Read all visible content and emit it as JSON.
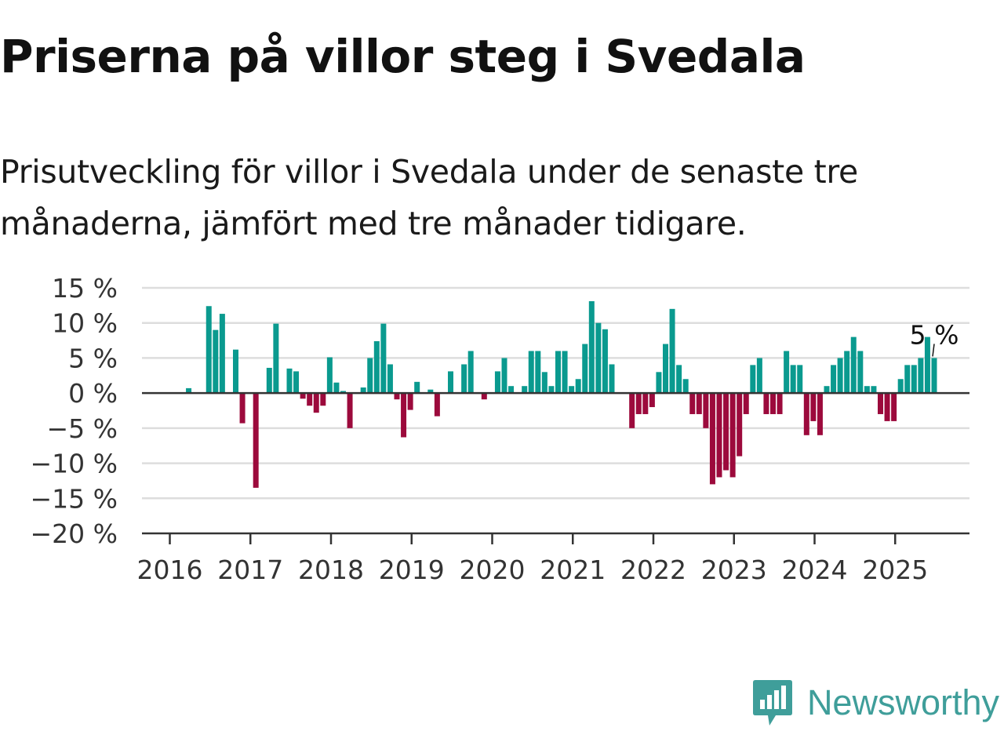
{
  "title": "Priserna på villor steg i Svedala",
  "subtitle": "Prisutveckling för villor i Svedala under de senaste tre månaderna, jämfört med tre månader tidigare.",
  "brand": {
    "name": "Newsworthy",
    "icon": "newsworthy-logo-icon",
    "color": "#3f9e9a"
  },
  "colors": {
    "positive": "#0a9a8f",
    "negative": "#9c0a3c",
    "grid": "#dddddd",
    "axis": "#333333"
  },
  "chart_data": {
    "type": "bar",
    "ylim": [
      -20,
      15
    ],
    "y_ticks": [
      15,
      10,
      5,
      0,
      -5,
      -10,
      -15,
      -20
    ],
    "y_tick_labels": [
      "15 %",
      "10 %",
      "5 %",
      "0 %",
      "−5 %",
      "−10 %",
      "−15 %",
      "−20 %"
    ],
    "x_ticks": [
      "2016",
      "2017",
      "2018",
      "2019",
      "2020",
      "2021",
      "2022",
      "2023",
      "2024",
      "2025"
    ],
    "grid": true,
    "start": "2016-01",
    "values": [
      null,
      0.7,
      null,
      null,
      12.4,
      9.0,
      11.3,
      null,
      6.2,
      -4.3,
      null,
      -13.5,
      null,
      3.6,
      9.9,
      null,
      3.5,
      3.1,
      -0.8,
      -1.8,
      -2.8,
      -1.8,
      5.1,
      1.5,
      0.3,
      -5.0,
      null,
      0.8,
      5.0,
      7.4,
      9.9,
      4.1,
      -0.9,
      -6.3,
      -2.4,
      1.6,
      null,
      0.5,
      -3.3,
      null,
      3.1,
      null,
      4.1,
      6.0,
      null,
      -0.9,
      null,
      3.1,
      5.0,
      1.0,
      null,
      1.0,
      6.0,
      6.0,
      3.0,
      1.0,
      6.0,
      6.0,
      1.0,
      2.0,
      7.0,
      13.1,
      10.0,
      9.1,
      4.1,
      null,
      null,
      -5.0,
      -3.0,
      -3.0,
      -2.0,
      3.0,
      7.0,
      12.0,
      4.0,
      2.0,
      -3.0,
      -3.0,
      -5.0,
      -13.0,
      -12.0,
      -11.0,
      -12.0,
      -9.0,
      -3.0,
      4.0,
      5.0,
      -3.0,
      -3.0,
      -3.0,
      6.0,
      4.0,
      4.0,
      -6.0,
      -4.0,
      -6.0,
      1.0,
      4.0,
      5.0,
      6.0,
      8.0,
      6.0,
      1.0,
      1.0,
      -3.0,
      -4.0,
      -4.0,
      2.0,
      4.0,
      4.0,
      5.0,
      8.0,
      5.0
    ],
    "annotation": {
      "label": "5 %",
      "month": "2025-05"
    }
  }
}
